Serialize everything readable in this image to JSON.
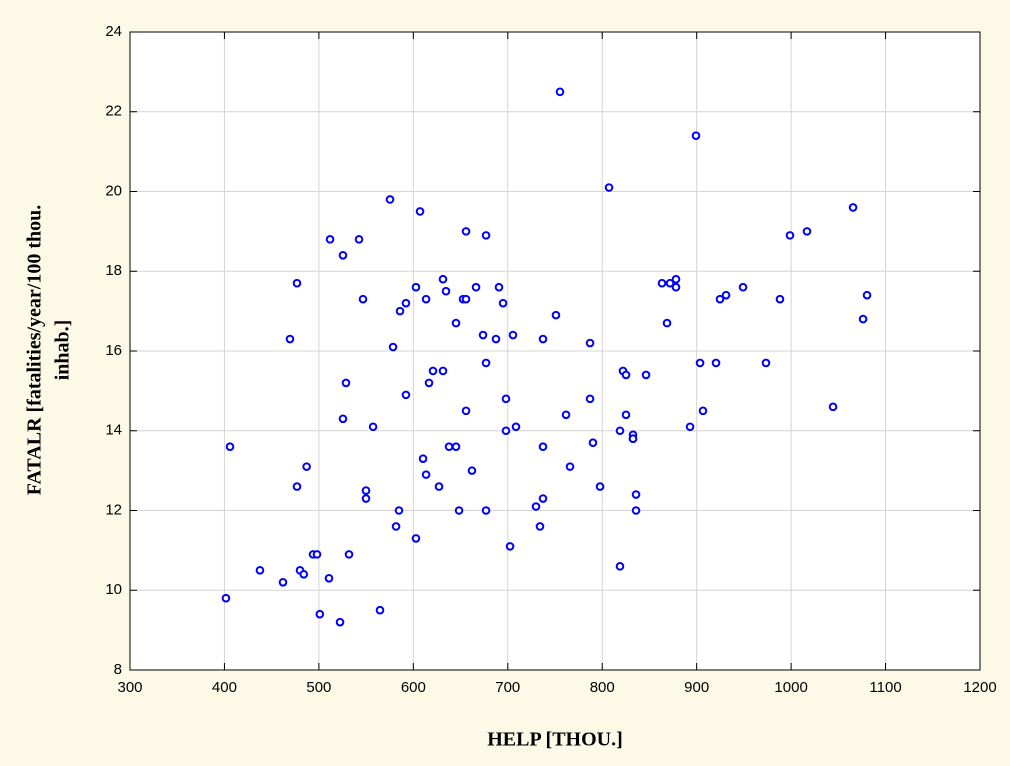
{
  "chart_data": {
    "type": "scatter",
    "x_label": "HELP [THOU.]",
    "y_label": [
      "FATALR [fatalities/year/100 thou.",
      "inhab.]"
    ],
    "color": "#0000ff",
    "grid": true,
    "xlim": [
      300,
      1200
    ],
    "xticks": [
      300,
      400,
      500,
      600,
      700,
      800,
      900,
      1000,
      1100,
      1200
    ],
    "ylim": [
      8,
      24
    ],
    "yticks": [
      8,
      10,
      12,
      14,
      16,
      18,
      20,
      22,
      24
    ],
    "x": [
      401.6,
      405.9,
      437.6,
      462,
      469.4,
      476.8,
      476.8,
      480,
      484,
      487,
      493.8,
      498,
      501,
      510.7,
      511.8,
      522.4,
      525.5,
      525.5,
      528.7,
      531.9,
      542.5,
      546.7,
      549.9,
      549.9,
      557.4,
      564.7,
      575.3,
      578.5,
      581.7,
      584.8,
      585.9,
      592.2,
      592.2,
      602.8,
      602.8,
      607.1,
      610.3,
      613.5,
      613.5,
      616.6,
      620.8,
      627.2,
      631.4,
      631.4,
      634.6,
      637.8,
      645.2,
      645.2,
      648.4,
      652.6,
      655.8,
      655.8,
      655.8,
      662.1,
      666.4,
      673.8,
      677,
      677,
      677,
      687.5,
      690.7,
      695,
      698.1,
      698.1,
      702.4,
      705.5,
      708.7,
      729.9,
      734.1,
      737.3,
      737.3,
      737.3,
      751,
      755.3,
      761.7,
      765.9,
      787.1,
      787.1,
      790.2,
      797.7,
      807.2,
      818.8,
      818.8,
      822,
      825.2,
      825.2,
      832.6,
      832.6,
      832.6,
      835.8,
      835.8,
      846.4,
      863.3,
      868.6,
      871.8,
      878.1,
      878.1,
      893,
      899.3,
      903.6,
      906.7,
      920.5,
      924.7,
      931.1,
      949.1,
      973.4,
      988.2,
      998.8,
      1016.8,
      1044.4,
      1065.6,
      1076.2,
      1080.4
    ],
    "y": [
      9.8,
      13.6,
      10.5,
      10.2,
      16.3,
      12.6,
      17.7,
      10.5,
      10.4,
      13.1,
      10.9,
      10.9,
      9.4,
      10.3,
      18.8,
      9.2,
      18.4,
      14.3,
      15.2,
      10.9,
      18.8,
      17.3,
      12.5,
      12.3,
      14.1,
      9.5,
      19.8,
      16.1,
      11.6,
      12,
      17,
      17.2,
      14.9,
      11.3,
      17.6,
      19.5,
      13.3,
      12.9,
      17.3,
      15.2,
      15.5,
      12.6,
      15.5,
      17.8,
      17.5,
      13.6,
      13.6,
      16.7,
      12,
      17.3,
      19,
      17.3,
      14.5,
      13,
      17.6,
      16.4,
      18.9,
      15.7,
      12,
      16.3,
      17.6,
      17.2,
      14.8,
      14,
      11.1,
      16.4,
      14.1,
      12.1,
      11.6,
      13.6,
      16.3,
      12.3,
      16.9,
      22.5,
      14.4,
      13.1,
      16.2,
      14.8,
      13.7,
      12.6,
      20.1,
      10.6,
      14,
      15.5,
      15.4,
      14.4,
      13.9,
      13.8,
      13.8,
      12.4,
      12,
      15.4,
      17.7,
      16.7,
      17.7,
      17.8,
      17.6,
      14.1,
      21.4,
      15.7,
      14.5,
      15.7,
      17.3,
      17.4,
      17.6,
      15.7,
      17.3,
      18.9,
      19,
      14.6,
      19.6,
      16.8,
      17.4
    ]
  }
}
